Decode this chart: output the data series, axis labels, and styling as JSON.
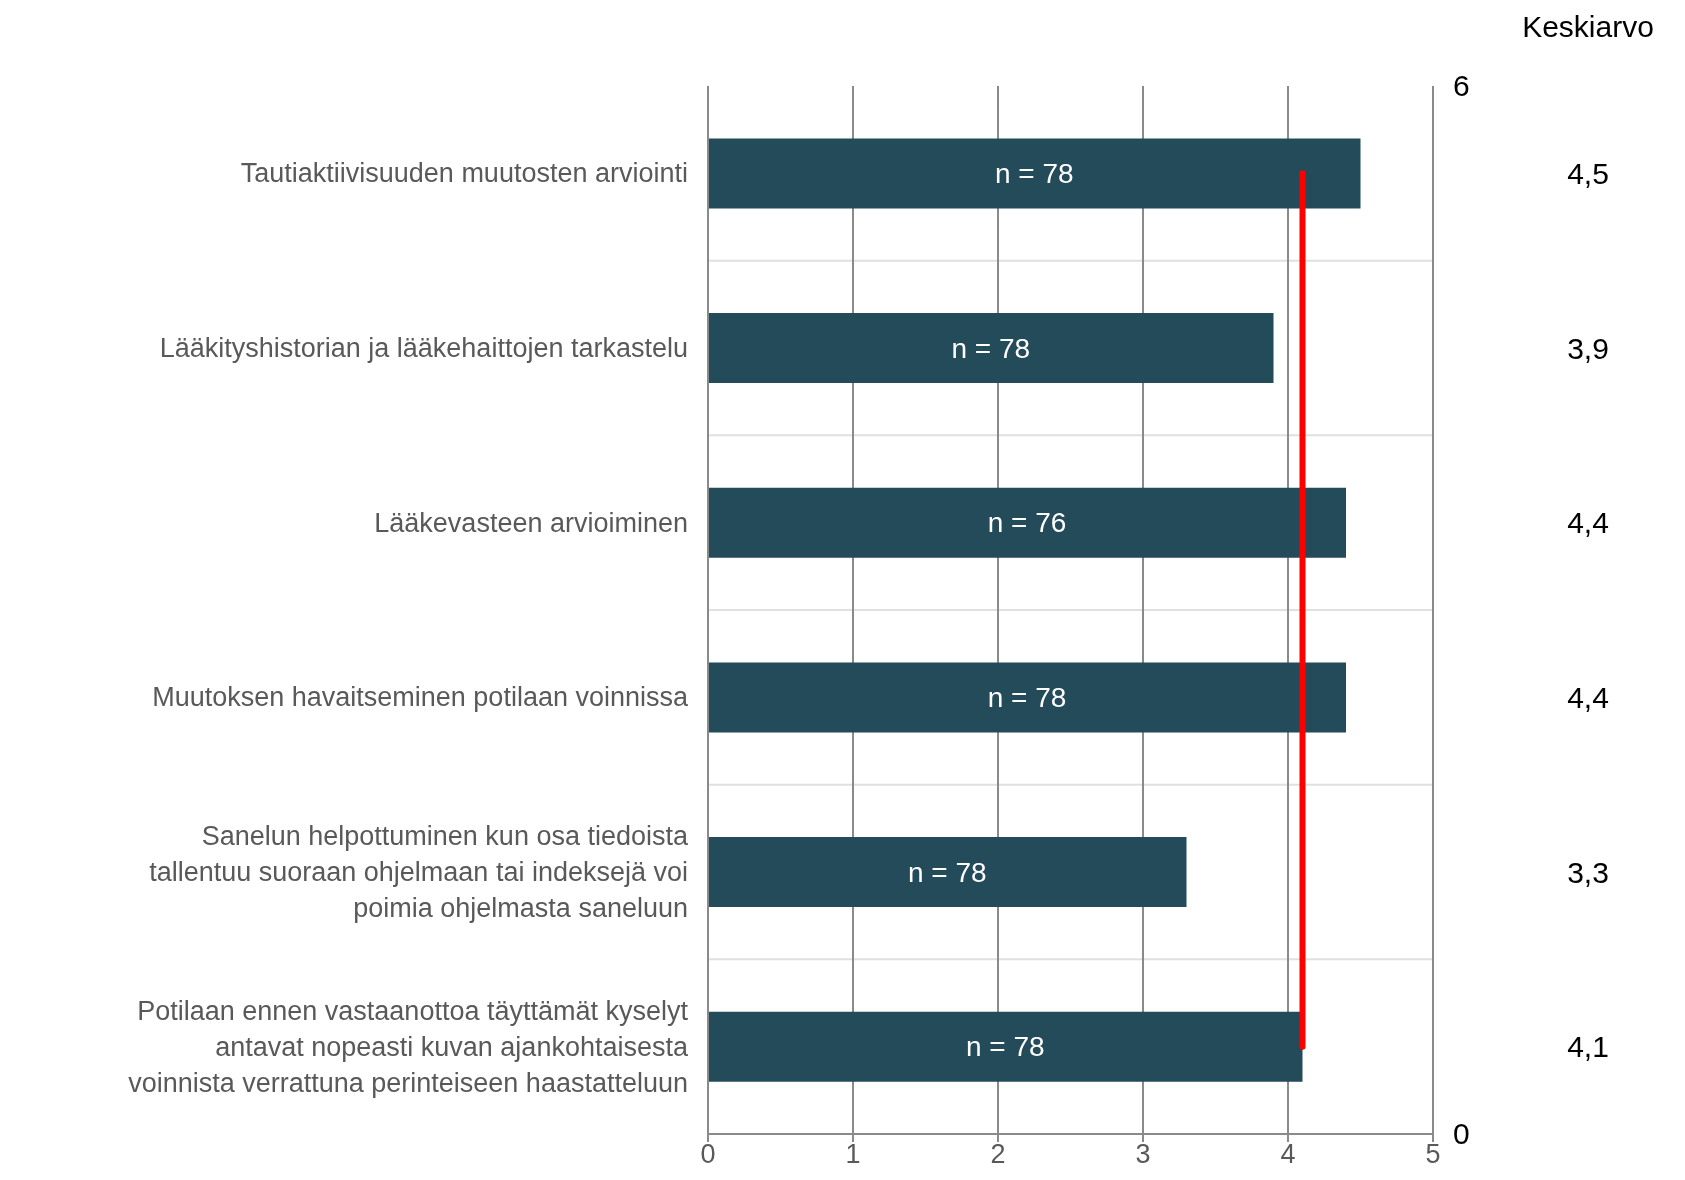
{
  "chart_data": {
    "type": "bar",
    "orientation": "horizontal",
    "categories": [
      "Tautiaktiivisuuden muutosten arviointi",
      "Lääkityshistorian ja lääkehaittojen tarkastelu",
      "Lääkevasteen arvioiminen",
      "Muutoksen havaitseminen potilaan voinnissa",
      "Sanelun helpottuminen kun osa tiedoista tallentuu suoraan ohjelmaan tai indeksejä voi poimia ohjelmasta saneluun",
      "Potilaan ennen vastaanottoa täyttämät kyselyt antavat nopeasti kuvan ajankohtaisesta voinnista verrattuna perinteiseen haastatteluun"
    ],
    "series": [
      {
        "color": "#234b5a",
        "values": [
          4.5,
          3.9,
          4.4,
          4.4,
          3.3,
          4.1
        ],
        "value_labels": [
          "4,5",
          "3,9",
          "4,4",
          "4,4",
          "3,3",
          "4,1"
        ]
      }
    ],
    "ref_lines": [
      {
        "axis": "x",
        "value": 4.1,
        "color": "#ff0000"
      }
    ],
    "xlim": [
      0,
      5
    ],
    "xticks": [
      0,
      1,
      2,
      3,
      4,
      5
    ],
    "grid": true,
    "annotations": [
      "Keskiarvo",
      "6",
      "0",
      "n = 78",
      "n = 78",
      "n = 76",
      "n = 78",
      "n = 78",
      "n = 78"
    ]
  }
}
